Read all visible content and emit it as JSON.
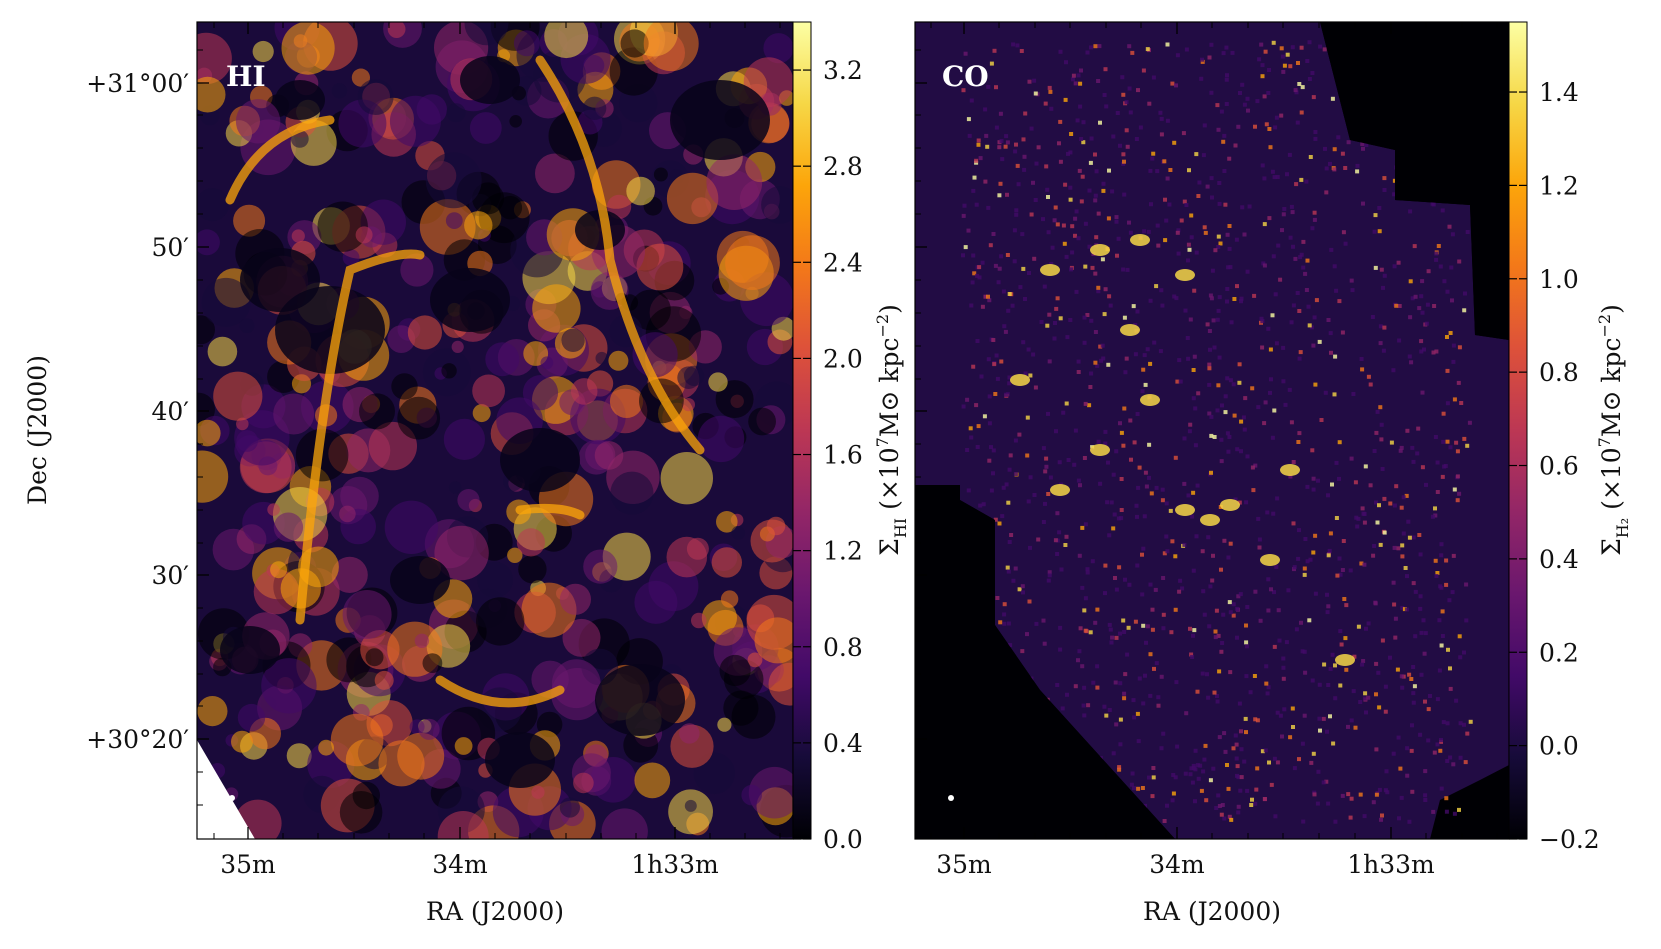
{
  "figure": {
    "colormap": "inferno",
    "background": "#ffffff"
  },
  "chart_data": [
    {
      "type": "heatmap",
      "panel_label": "HI",
      "xlabel": "RA (J2000)",
      "ylabel": "Dec (J2000)",
      "x_ticks": [
        "35m",
        "34m",
        "1h33m"
      ],
      "y_ticks": [
        "+31°00′",
        "50′",
        "40′",
        "30′",
        "+30°20′"
      ],
      "colorbar": {
        "label": "Σ_HI (×10^7 M⊙ kpc^−2)",
        "label_main": "Σ",
        "label_sub": "HI",
        "label_rest": "(×10",
        "label_sup": "7",
        "label_unit": "M⊙ kpc",
        "label_unit_sup": "−2",
        "label_close": ")",
        "range": [
          0.0,
          3.4
        ],
        "ticks": [
          0.0,
          0.4,
          0.8,
          1.2,
          1.6,
          2.0,
          2.4,
          2.8,
          3.2
        ],
        "tick_labels": [
          "0.0",
          "0.4",
          "0.8",
          "1.2",
          "1.6",
          "2.0",
          "2.4",
          "2.8",
          "3.2"
        ]
      },
      "beam_marker": true
    },
    {
      "type": "heatmap",
      "panel_label": "CO",
      "xlabel": "RA (J2000)",
      "ylabel": "",
      "x_ticks": [
        "35m",
        "34m",
        "1h33m"
      ],
      "y_ticks": [],
      "colorbar": {
        "label": "Σ_H2 (×10^7 M⊙ kpc^−2)",
        "label_main": "Σ",
        "label_sub": "H₂",
        "label_rest": "(×10",
        "label_sup": "7",
        "label_unit": "M⊙ kpc",
        "label_unit_sup": "−2",
        "label_close": ")",
        "range": [
          -0.2,
          1.55
        ],
        "ticks": [
          -0.2,
          0.0,
          0.2,
          0.4,
          0.6,
          0.8,
          1.0,
          1.2,
          1.4
        ],
        "tick_labels": [
          "−0.2",
          "0.0",
          "0.2",
          "0.4",
          "0.6",
          "0.8",
          "1.0",
          "1.2",
          "1.4"
        ]
      },
      "beam_marker": true
    }
  ]
}
